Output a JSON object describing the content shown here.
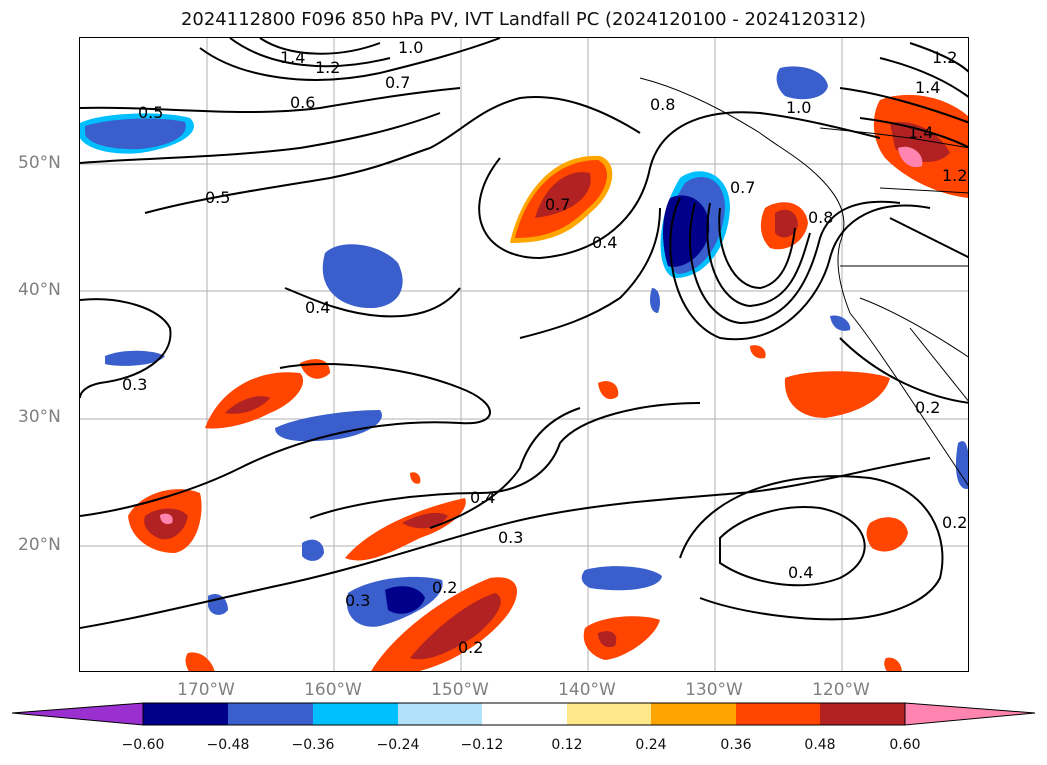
{
  "title": "2024112800 F096 850 hPa PV, IVT Landfall PC (2024120100 - 2024120312)",
  "lat_labels": [
    "50°N",
    "40°N",
    "30°N",
    "20°N"
  ],
  "lon_labels": [
    "170°W",
    "160°W",
    "150°W",
    "140°W",
    "130°W",
    "120°W"
  ],
  "contour_labels": [
    "1.4",
    "1.2",
    "1.0",
    "0.6",
    "0.7",
    "0.5",
    "0.8",
    "0.7",
    "0.4",
    "0.4",
    "0.3",
    "0.4",
    "0.3",
    "0.2",
    "0.3",
    "0.2",
    "0.4",
    "1.0",
    "0.8",
    "0.7",
    "1.2",
    "1.4",
    "1.4",
    "1.2",
    "0.2",
    "0.2",
    "0.5"
  ],
  "colorbar": {
    "ticks": [
      "−0.60",
      "−0.48",
      "−0.36",
      "−0.24",
      "−0.12",
      "0.12",
      "0.24",
      "0.36",
      "0.48",
      "0.60"
    ],
    "colors": [
      "#9b30d0",
      "#00008b",
      "#3a5fcd",
      "#00bfff",
      "#b0e0fa",
      "#ffffff",
      "#ffe88a",
      "#ffa500",
      "#ff4500",
      "#b22222",
      "#ff85b0",
      "#ff85b0"
    ]
  },
  "colors": {
    "positive_anomaly": "#ff4500",
    "negative_anomaly": "#3a5fcd",
    "contour": "#000000",
    "grid": "#b0b0b0"
  }
}
